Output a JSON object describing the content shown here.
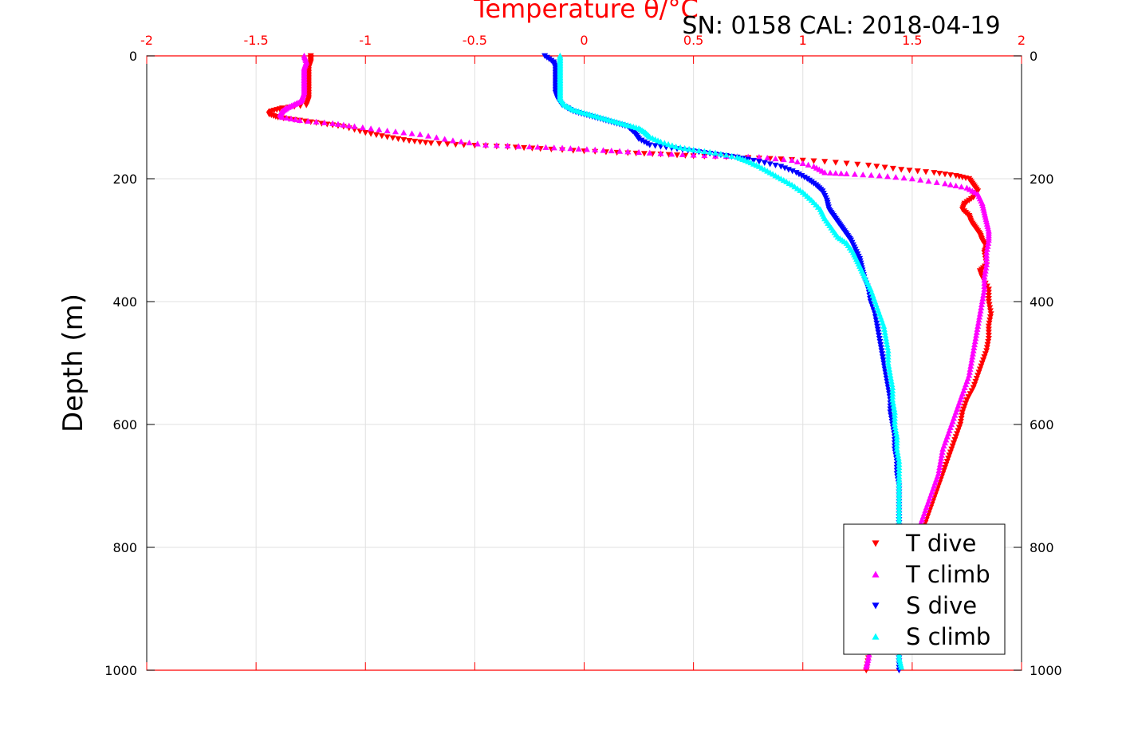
{
  "chart_data": {
    "type": "scatter",
    "title": "SN: 0158  CAL: 2018-04-19",
    "xlabel": "Temperature θ/°C",
    "ylabel": "Depth (m)",
    "xlim": [
      -2,
      2
    ],
    "ylim": [
      0,
      1000
    ],
    "y_reversed": true,
    "x_axis_position": "top",
    "grid": true,
    "legend_position": "bottom-right",
    "x_ticks": [
      "-2",
      "-1.5",
      "-1",
      "-0.5",
      "0",
      "0.5",
      "1",
      "1.5",
      "2"
    ],
    "y_ticks": [
      "0",
      "200",
      "400",
      "600",
      "800",
      "1000"
    ],
    "series": [
      {
        "name": "T dive",
        "color": "#ff0000",
        "marker": "triangle-down",
        "points": [
          [
            -1.25,
            0
          ],
          [
            -1.25,
            10
          ],
          [
            -1.26,
            20
          ],
          [
            -1.26,
            30
          ],
          [
            -1.26,
            40
          ],
          [
            -1.26,
            50
          ],
          [
            -1.26,
            60
          ],
          [
            -1.26,
            70
          ],
          [
            -1.27,
            80
          ],
          [
            -1.38,
            85
          ],
          [
            -1.43,
            90
          ],
          [
            -1.44,
            95
          ],
          [
            -1.4,
            100
          ],
          [
            -1.3,
            105
          ],
          [
            -1.2,
            110
          ],
          [
            -1.1,
            115
          ],
          [
            -1.0,
            125
          ],
          [
            -0.9,
            132
          ],
          [
            -0.8,
            138
          ],
          [
            -0.7,
            142
          ],
          [
            -0.55,
            145
          ],
          [
            -0.35,
            148
          ],
          [
            -0.2,
            151
          ],
          [
            0.0,
            155
          ],
          [
            0.2,
            158
          ],
          [
            0.35,
            160
          ],
          [
            0.5,
            163
          ],
          [
            0.7,
            165
          ],
          [
            0.9,
            168
          ],
          [
            1.1,
            172
          ],
          [
            1.3,
            178
          ],
          [
            1.45,
            185
          ],
          [
            1.6,
            190
          ],
          [
            1.7,
            195
          ],
          [
            1.76,
            200
          ],
          [
            1.78,
            210
          ],
          [
            1.8,
            220
          ],
          [
            1.78,
            230
          ],
          [
            1.74,
            240
          ],
          [
            1.73,
            250
          ],
          [
            1.76,
            260
          ],
          [
            1.77,
            270
          ],
          [
            1.79,
            280
          ],
          [
            1.81,
            290
          ],
          [
            1.82,
            300
          ],
          [
            1.84,
            310
          ],
          [
            1.83,
            320
          ],
          [
            1.84,
            340
          ],
          [
            1.81,
            350
          ],
          [
            1.82,
            360
          ],
          [
            1.85,
            380
          ],
          [
            1.85,
            400
          ],
          [
            1.86,
            420
          ],
          [
            1.85,
            440
          ],
          [
            1.85,
            460
          ],
          [
            1.84,
            480
          ],
          [
            1.82,
            500
          ],
          [
            1.8,
            520
          ],
          [
            1.78,
            540
          ],
          [
            1.75,
            560
          ],
          [
            1.73,
            580
          ],
          [
            1.72,
            600
          ],
          [
            1.7,
            620
          ],
          [
            1.68,
            640
          ],
          [
            1.66,
            660
          ],
          [
            1.64,
            680
          ],
          [
            1.62,
            700
          ],
          [
            1.6,
            720
          ],
          [
            1.58,
            740
          ],
          [
            1.56,
            760
          ],
          [
            1.53,
            780
          ],
          [
            1.5,
            800
          ],
          [
            1.48,
            820
          ],
          [
            1.45,
            840
          ],
          [
            1.42,
            860
          ],
          [
            1.39,
            880
          ],
          [
            1.37,
            900
          ],
          [
            1.35,
            920
          ],
          [
            1.33,
            940
          ],
          [
            1.31,
            960
          ],
          [
            1.3,
            980
          ],
          [
            1.29,
            1000
          ]
        ]
      },
      {
        "name": "T climb",
        "color": "#ff00ff",
        "marker": "triangle-up",
        "points": [
          [
            -1.28,
            0
          ],
          [
            -1.27,
            10
          ],
          [
            -1.28,
            20
          ],
          [
            -1.28,
            30
          ],
          [
            -1.28,
            40
          ],
          [
            -1.28,
            50
          ],
          [
            -1.28,
            60
          ],
          [
            -1.29,
            70
          ],
          [
            -1.3,
            75
          ],
          [
            -1.33,
            80
          ],
          [
            -1.36,
            85
          ],
          [
            -1.38,
            90
          ],
          [
            -1.39,
            95
          ],
          [
            -1.38,
            100
          ],
          [
            -1.3,
            105
          ],
          [
            -1.15,
            110
          ],
          [
            -1.05,
            115
          ],
          [
            -0.9,
            122
          ],
          [
            -0.75,
            128
          ],
          [
            -0.6,
            138
          ],
          [
            -0.45,
            145
          ],
          [
            -0.25,
            148
          ],
          [
            -0.1,
            150
          ],
          [
            0.05,
            153
          ],
          [
            0.2,
            156
          ],
          [
            0.4,
            160
          ],
          [
            0.6,
            163
          ],
          [
            0.8,
            165
          ],
          [
            0.95,
            170
          ],
          [
            1.05,
            180
          ],
          [
            1.1,
            190
          ],
          [
            1.2,
            192
          ],
          [
            1.35,
            195
          ],
          [
            1.5,
            200
          ],
          [
            1.65,
            208
          ],
          [
            1.75,
            215
          ],
          [
            1.8,
            225
          ],
          [
            1.82,
            240
          ],
          [
            1.83,
            255
          ],
          [
            1.84,
            270
          ],
          [
            1.85,
            285
          ],
          [
            1.85,
            300
          ],
          [
            1.84,
            320
          ],
          [
            1.84,
            340
          ],
          [
            1.83,
            360
          ],
          [
            1.83,
            380
          ],
          [
            1.82,
            400
          ],
          [
            1.81,
            420
          ],
          [
            1.8,
            440
          ],
          [
            1.79,
            460
          ],
          [
            1.78,
            480
          ],
          [
            1.77,
            500
          ],
          [
            1.76,
            520
          ],
          [
            1.74,
            540
          ],
          [
            1.72,
            560
          ],
          [
            1.7,
            580
          ],
          [
            1.68,
            600
          ],
          [
            1.66,
            620
          ],
          [
            1.64,
            640
          ],
          [
            1.63,
            660
          ],
          [
            1.62,
            680
          ],
          [
            1.6,
            700
          ],
          [
            1.58,
            720
          ],
          [
            1.56,
            740
          ],
          [
            1.54,
            760
          ],
          [
            1.52,
            780
          ],
          [
            1.49,
            800
          ],
          [
            1.46,
            820
          ],
          [
            1.43,
            840
          ],
          [
            1.4,
            860
          ],
          [
            1.38,
            880
          ],
          [
            1.36,
            900
          ],
          [
            1.34,
            920
          ],
          [
            1.32,
            940
          ],
          [
            1.31,
            960
          ],
          [
            1.3,
            980
          ],
          [
            1.29,
            995
          ]
        ]
      },
      {
        "name": "S dive",
        "color": "#0000ff",
        "marker": "triangle-down",
        "points": [
          [
            -0.18,
            0
          ],
          [
            -0.14,
            10
          ],
          [
            -0.13,
            20
          ],
          [
            -0.13,
            30
          ],
          [
            -0.13,
            40
          ],
          [
            -0.13,
            50
          ],
          [
            -0.13,
            60
          ],
          [
            -0.12,
            70
          ],
          [
            -0.1,
            80
          ],
          [
            -0.05,
            90
          ],
          [
            0.0,
            95
          ],
          [
            0.05,
            100
          ],
          [
            0.1,
            105
          ],
          [
            0.15,
            110
          ],
          [
            0.2,
            115
          ],
          [
            0.23,
            125
          ],
          [
            0.25,
            135
          ],
          [
            0.3,
            145
          ],
          [
            0.4,
            150
          ],
          [
            0.5,
            155
          ],
          [
            0.6,
            160
          ],
          [
            0.7,
            165
          ],
          [
            0.8,
            172
          ],
          [
            0.9,
            180
          ],
          [
            0.97,
            190
          ],
          [
            1.02,
            200
          ],
          [
            1.06,
            210
          ],
          [
            1.09,
            220
          ],
          [
            1.11,
            235
          ],
          [
            1.12,
            250
          ],
          [
            1.14,
            260
          ],
          [
            1.16,
            270
          ],
          [
            1.18,
            280
          ],
          [
            1.2,
            290
          ],
          [
            1.22,
            300
          ],
          [
            1.24,
            315
          ],
          [
            1.26,
            330
          ],
          [
            1.27,
            345
          ],
          [
            1.28,
            360
          ],
          [
            1.3,
            380
          ],
          [
            1.31,
            400
          ],
          [
            1.33,
            420
          ],
          [
            1.34,
            440
          ],
          [
            1.35,
            460
          ],
          [
            1.36,
            480
          ],
          [
            1.37,
            500
          ],
          [
            1.38,
            520
          ],
          [
            1.39,
            540
          ],
          [
            1.4,
            560
          ],
          [
            1.4,
            580
          ],
          [
            1.41,
            600
          ],
          [
            1.42,
            620
          ],
          [
            1.42,
            640
          ],
          [
            1.43,
            660
          ],
          [
            1.43,
            680
          ],
          [
            1.44,
            700
          ],
          [
            1.44,
            720
          ],
          [
            1.44,
            740
          ],
          [
            1.44,
            760
          ],
          [
            1.44,
            780
          ],
          [
            1.44,
            800
          ],
          [
            1.44,
            820
          ],
          [
            1.44,
            840
          ],
          [
            1.44,
            860
          ],
          [
            1.44,
            880
          ],
          [
            1.44,
            900
          ],
          [
            1.44,
            920
          ],
          [
            1.44,
            940
          ],
          [
            1.44,
            960
          ],
          [
            1.44,
            980
          ],
          [
            1.44,
            1000
          ]
        ]
      },
      {
        "name": "S climb",
        "color": "#00ffff",
        "marker": "triangle-up",
        "points": [
          [
            -0.11,
            0
          ],
          [
            -0.11,
            10
          ],
          [
            -0.11,
            20
          ],
          [
            -0.11,
            30
          ],
          [
            -0.11,
            40
          ],
          [
            -0.11,
            50
          ],
          [
            -0.11,
            60
          ],
          [
            -0.11,
            70
          ],
          [
            -0.09,
            80
          ],
          [
            -0.05,
            88
          ],
          [
            0.0,
            93
          ],
          [
            0.05,
            98
          ],
          [
            0.1,
            103
          ],
          [
            0.15,
            108
          ],
          [
            0.2,
            113
          ],
          [
            0.25,
            118
          ],
          [
            0.28,
            125
          ],
          [
            0.3,
            132
          ],
          [
            0.35,
            140
          ],
          [
            0.42,
            148
          ],
          [
            0.5,
            153
          ],
          [
            0.6,
            158
          ],
          [
            0.7,
            165
          ],
          [
            0.75,
            172
          ],
          [
            0.8,
            180
          ],
          [
            0.85,
            190
          ],
          [
            0.9,
            200
          ],
          [
            0.95,
            210
          ],
          [
            1.0,
            222
          ],
          [
            1.04,
            235
          ],
          [
            1.08,
            250
          ],
          [
            1.1,
            265
          ],
          [
            1.13,
            280
          ],
          [
            1.16,
            295
          ],
          [
            1.2,
            305
          ],
          [
            1.23,
            320
          ],
          [
            1.25,
            335
          ],
          [
            1.27,
            350
          ],
          [
            1.29,
            365
          ],
          [
            1.31,
            380
          ],
          [
            1.33,
            400
          ],
          [
            1.35,
            420
          ],
          [
            1.37,
            440
          ],
          [
            1.38,
            460
          ],
          [
            1.39,
            480
          ],
          [
            1.39,
            500
          ],
          [
            1.4,
            520
          ],
          [
            1.41,
            540
          ],
          [
            1.41,
            560
          ],
          [
            1.42,
            580
          ],
          [
            1.42,
            600
          ],
          [
            1.43,
            620
          ],
          [
            1.43,
            640
          ],
          [
            1.44,
            660
          ],
          [
            1.44,
            680
          ],
          [
            1.44,
            700
          ],
          [
            1.44,
            720
          ],
          [
            1.44,
            740
          ],
          [
            1.44,
            760
          ],
          [
            1.44,
            780
          ],
          [
            1.44,
            800
          ],
          [
            1.44,
            820
          ],
          [
            1.44,
            840
          ],
          [
            1.44,
            860
          ],
          [
            1.44,
            880
          ],
          [
            1.44,
            900
          ],
          [
            1.44,
            920
          ],
          [
            1.44,
            940
          ],
          [
            1.44,
            960
          ],
          [
            1.44,
            980
          ],
          [
            1.45,
            995
          ]
        ]
      }
    ]
  }
}
